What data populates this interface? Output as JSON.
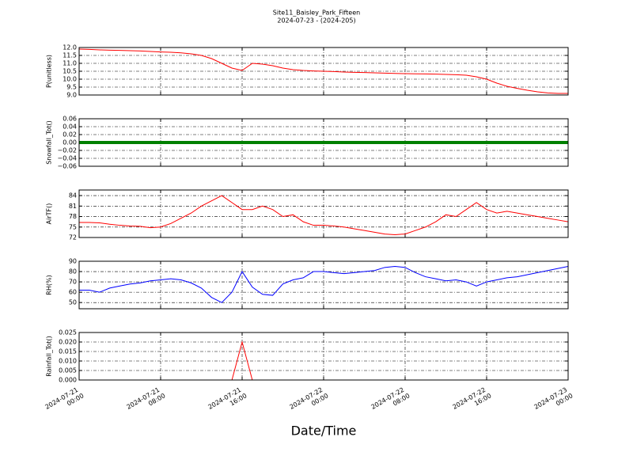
{
  "chart_data": {
    "type": "line",
    "title": "Site11_Baisley_Park_Fifteen",
    "subtitle": "2024-07-23 - (2024-205)",
    "xlabel": "Date/Time",
    "grid": true,
    "xlim": [
      "2024-07-21 00:00",
      "2024-07-23 00:00"
    ],
    "xticks": [
      "2024-07-21 00:00",
      "2024-07-21 08:00",
      "2024-07-21 16:00",
      "2024-07-22 00:00",
      "2024-07-22 08:00",
      "2024-07-22 16:00",
      "2024-07-23 00:00"
    ],
    "x": [
      "2024-07-21 00:00",
      "2024-07-21 01:00",
      "2024-07-21 02:00",
      "2024-07-21 03:00",
      "2024-07-21 04:00",
      "2024-07-21 05:00",
      "2024-07-21 06:00",
      "2024-07-21 07:00",
      "2024-07-21 08:00",
      "2024-07-21 09:00",
      "2024-07-21 10:00",
      "2024-07-21 11:00",
      "2024-07-21 12:00",
      "2024-07-21 13:00",
      "2024-07-21 14:00",
      "2024-07-21 15:00",
      "2024-07-21 16:00",
      "2024-07-21 17:00",
      "2024-07-21 18:00",
      "2024-07-21 19:00",
      "2024-07-21 20:00",
      "2024-07-21 21:00",
      "2024-07-21 22:00",
      "2024-07-21 23:00",
      "2024-07-22 00:00",
      "2024-07-22 01:00",
      "2024-07-22 02:00",
      "2024-07-22 03:00",
      "2024-07-22 04:00",
      "2024-07-22 05:00",
      "2024-07-22 06:00",
      "2024-07-22 07:00",
      "2024-07-22 08:00",
      "2024-07-22 09:00",
      "2024-07-22 10:00",
      "2024-07-22 11:00",
      "2024-07-22 12:00",
      "2024-07-22 13:00",
      "2024-07-22 14:00",
      "2024-07-22 15:00",
      "2024-07-22 16:00",
      "2024-07-22 17:00",
      "2024-07-22 18:00",
      "2024-07-22 19:00",
      "2024-07-22 20:00",
      "2024-07-22 21:00",
      "2024-07-22 22:00",
      "2024-07-22 23:00",
      "2024-07-23 00:00"
    ],
    "panels": [
      {
        "ylabel": "P(unitless)",
        "color": "#ff0000",
        "line_width": 1,
        "ylim": [
          9,
          12
        ],
        "yticks": [
          {
            "value": 9,
            "label": "9.0"
          },
          {
            "value": 9.5,
            "label": "9.5"
          },
          {
            "value": 10,
            "label": "10.0"
          },
          {
            "value": 10.5,
            "label": "10.5"
          },
          {
            "value": 11,
            "label": "11.0"
          },
          {
            "value": 11.5,
            "label": "11.5"
          },
          {
            "value": 12,
            "label": "12.0"
          }
        ],
        "values": [
          11.9,
          11.88,
          11.85,
          11.83,
          11.82,
          11.8,
          11.78,
          11.75,
          11.72,
          11.7,
          11.66,
          11.6,
          11.5,
          11.3,
          11.0,
          10.7,
          10.55,
          11.0,
          10.95,
          10.85,
          10.7,
          10.6,
          10.55,
          10.52,
          10.5,
          10.48,
          10.45,
          10.43,
          10.42,
          10.4,
          10.38,
          10.36,
          10.35,
          10.34,
          10.33,
          10.32,
          10.3,
          10.28,
          10.25,
          10.15,
          10.0,
          9.75,
          9.55,
          9.42,
          9.3,
          9.2,
          9.13,
          9.1,
          9.1
        ]
      },
      {
        "ylabel": "Snowfall_Tot()",
        "color": "#008000",
        "line_width": 4,
        "ylim": [
          -0.06,
          0.06
        ],
        "yticks": [
          {
            "value": -0.06,
            "label": "−0.06"
          },
          {
            "value": -0.04,
            "label": "−0.04"
          },
          {
            "value": -0.02,
            "label": "−0.02"
          },
          {
            "value": 0,
            "label": "0.00"
          },
          {
            "value": 0.02,
            "label": "0.02"
          },
          {
            "value": 0.04,
            "label": "0.04"
          },
          {
            "value": 0.06,
            "label": "0.06"
          }
        ],
        "values": [
          0,
          0,
          0,
          0,
          0,
          0,
          0,
          0,
          0,
          0,
          0,
          0,
          0,
          0,
          0,
          0,
          0,
          0,
          0,
          0,
          0,
          0,
          0,
          0,
          0,
          0,
          0,
          0,
          0,
          0,
          0,
          0,
          0,
          0,
          0,
          0,
          0,
          0,
          0,
          0,
          0,
          0,
          0,
          0,
          0,
          0,
          0,
          0,
          0
        ]
      },
      {
        "ylabel": "AirTF()",
        "color": "#ff0000",
        "line_width": 1,
        "ylim": [
          72,
          85.6
        ],
        "yticks": [
          72,
          75,
          78,
          81,
          84
        ],
        "values": [
          76.3,
          76.3,
          76.2,
          75.8,
          75.5,
          75.3,
          75.2,
          74.8,
          75,
          76,
          77.5,
          79,
          81,
          82.5,
          84,
          82,
          80,
          80,
          81,
          80,
          78,
          78.5,
          76.5,
          75.5,
          75.5,
          75.3,
          75,
          74.5,
          74,
          73.5,
          73,
          72.8,
          73,
          74,
          75,
          76.5,
          78.5,
          78,
          80,
          82,
          80,
          79,
          79.5,
          79,
          78.5,
          78,
          77.5,
          77,
          76.5
        ]
      },
      {
        "ylabel": "RH(%)",
        "color": "#0000ff",
        "line_width": 1,
        "ylim": [
          44,
          90
        ],
        "yticks": [
          50,
          60,
          70,
          80,
          90
        ],
        "values": [
          62,
          62,
          60,
          64,
          66,
          68,
          69,
          71,
          72,
          73,
          72,
          69,
          64,
          55,
          50,
          60,
          80,
          65,
          58,
          57,
          68,
          72,
          74,
          80,
          80,
          79,
          78,
          79,
          80,
          81,
          84,
          85,
          84,
          79,
          75,
          73,
          71,
          72,
          70,
          66,
          70,
          72,
          74,
          75,
          77,
          79,
          81,
          83,
          85
        ]
      },
      {
        "ylabel": "Rainfall_Tot()",
        "color": "#ff0000",
        "line_width": 1,
        "ylim": [
          0,
          0.025
        ],
        "yticks": [
          {
            "value": 0,
            "label": "0.000"
          },
          {
            "value": 0.005,
            "label": "0.005"
          },
          {
            "value": 0.01,
            "label": "0.010"
          },
          {
            "value": 0.015,
            "label": "0.015"
          },
          {
            "value": 0.02,
            "label": "0.020"
          },
          {
            "value": 0.025,
            "label": "0.025"
          }
        ],
        "values": [
          0,
          0,
          0,
          0,
          0,
          0,
          0,
          0,
          0,
          0,
          0,
          0,
          0,
          0,
          0,
          0,
          0.02,
          0,
          0,
          0,
          0,
          0,
          0,
          0,
          0,
          0,
          0,
          0,
          0,
          0,
          0,
          0,
          0,
          0,
          0,
          0,
          0,
          0,
          0,
          0,
          0,
          0,
          0,
          0,
          0,
          0,
          0,
          0,
          0
        ]
      }
    ]
  }
}
